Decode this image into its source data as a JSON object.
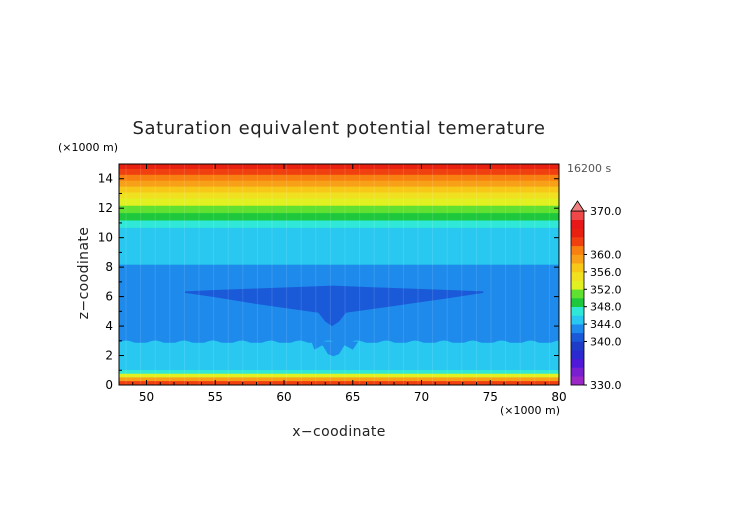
{
  "chart_data": {
    "type": "heatmap",
    "title": "Saturation equivalent potential temerature",
    "xlabel": "x−coodinate",
    "ylabel": "z−coodinate",
    "x_unit": "(×1000 m)",
    "y_unit": "(×1000 m)",
    "time_label": "16200 s",
    "xlim": [
      48,
      80
    ],
    "ylim": [
      0,
      15
    ],
    "x_ticks": [
      50,
      55,
      60,
      65,
      70,
      75,
      80
    ],
    "y_ticks": [
      0,
      2,
      4,
      6,
      8,
      10,
      12,
      14
    ],
    "colorbar": {
      "levels": [
        330,
        332,
        334,
        336,
        338,
        340,
        342,
        344,
        346,
        348,
        350,
        352,
        354,
        356,
        358,
        360,
        362,
        364,
        366,
        368,
        370
      ],
      "colors": [
        "#9b27c6",
        "#7a1fd0",
        "#5018d8",
        "#2a2ad0",
        "#1e3cc8",
        "#1a5ad8",
        "#1e8aec",
        "#28c8f0",
        "#30e8d8",
        "#1ec83c",
        "#60e030",
        "#e0f020",
        "#f0e020",
        "#f8c818",
        "#f8a018",
        "#f88010",
        "#f04010",
        "#e82010",
        "#e81818",
        "#f04848"
      ],
      "tick_values": [
        330.0,
        340.0,
        344.0,
        348.0,
        352.0,
        356.0,
        360.0,
        370.0
      ],
      "tick_labels": [
        "330.0",
        "340.0",
        "344.0",
        "348.0",
        "352.0",
        "356.0",
        "360.0",
        "370.0"
      ],
      "extend": "max"
    },
    "bands": [
      {
        "z0": 0.0,
        "z1": 0.3,
        "color": "#f04010"
      },
      {
        "z0": 0.3,
        "z1": 0.55,
        "color": "#f8a018"
      },
      {
        "z0": 0.55,
        "z1": 0.8,
        "color": "#e0f020"
      },
      {
        "z0": 0.8,
        "z1": 1.05,
        "color": "#30e8d8"
      },
      {
        "z0": 1.05,
        "z1": 2.9,
        "color": "#28c8f0"
      },
      {
        "z0": 2.9,
        "z1": 8.2,
        "color": "#1e8aec"
      },
      {
        "z0": 8.2,
        "z1": 10.7,
        "color": "#28c8f0"
      },
      {
        "z0": 10.7,
        "z1": 11.2,
        "color": "#30e8d8"
      },
      {
        "z0": 11.2,
        "z1": 11.7,
        "color": "#1ec83c"
      },
      {
        "z0": 11.7,
        "z1": 12.2,
        "color": "#60e030"
      },
      {
        "z0": 12.2,
        "z1": 12.7,
        "color": "#e0f020"
      },
      {
        "z0": 12.7,
        "z1": 13.1,
        "color": "#f0e020"
      },
      {
        "z0": 13.1,
        "z1": 13.5,
        "color": "#f8c818"
      },
      {
        "z0": 13.5,
        "z1": 13.9,
        "color": "#f8a018"
      },
      {
        "z0": 13.9,
        "z1": 14.3,
        "color": "#f88010"
      },
      {
        "z0": 14.3,
        "z1": 14.7,
        "color": "#f04010"
      },
      {
        "z0": 14.7,
        "z1": 15.0,
        "color": "#e82010"
      }
    ],
    "low_region": {
      "color": "#1a5ad8",
      "upper": [
        [
          52.8,
          6.35
        ],
        [
          55,
          6.45
        ],
        [
          58,
          6.55
        ],
        [
          61,
          6.65
        ],
        [
          63.5,
          6.75
        ],
        [
          66,
          6.65
        ],
        [
          69,
          6.55
        ],
        [
          72,
          6.45
        ],
        [
          74.5,
          6.35
        ]
      ],
      "lower": [
        [
          74.5,
          6.25
        ],
        [
          72,
          5.9
        ],
        [
          69,
          5.5
        ],
        [
          66,
          5.1
        ],
        [
          64.5,
          4.9
        ],
        [
          64.0,
          4.3
        ],
        [
          63.5,
          4.0
        ],
        [
          63.0,
          4.3
        ],
        [
          62.5,
          4.9
        ],
        [
          61,
          5.1
        ],
        [
          58,
          5.5
        ],
        [
          55,
          5.95
        ],
        [
          52.8,
          6.25
        ]
      ]
    },
    "low_blob": {
      "color": "#1e8aec",
      "outline": [
        [
          62.0,
          2.95
        ],
        [
          62.2,
          2.4
        ],
        [
          62.8,
          2.7
        ],
        [
          63.2,
          2.1
        ],
        [
          63.6,
          1.95
        ],
        [
          64.0,
          2.1
        ],
        [
          64.4,
          2.7
        ],
        [
          65.0,
          2.4
        ],
        [
          65.4,
          2.95
        ]
      ]
    },
    "wave_lower_z": 2.9,
    "wave_upper_z": 1.05
  }
}
